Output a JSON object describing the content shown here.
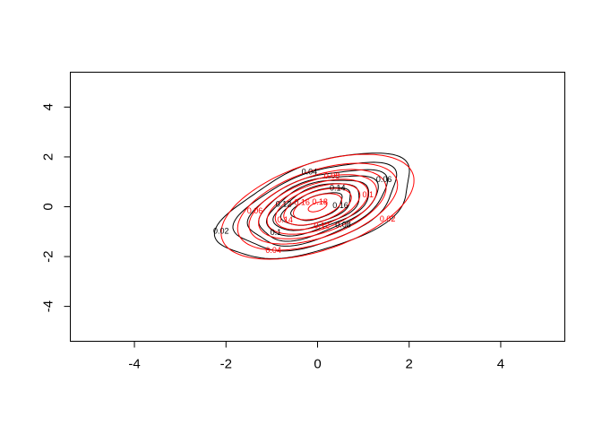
{
  "chart_data": {
    "type": "contour",
    "title": "",
    "xlabel": "",
    "ylabel": "",
    "xlim": [
      -5.4,
      5.4
    ],
    "ylim": [
      -5.4,
      5.4
    ],
    "x_ticks": [
      "-4",
      "-2",
      "0",
      "2",
      "4"
    ],
    "y_ticks": [
      "-4",
      "-2",
      "0",
      "2",
      "4"
    ],
    "x_tick_values": [
      -4,
      -2,
      0,
      2,
      4
    ],
    "y_tick_values": [
      -4,
      -2,
      0,
      2,
      4
    ],
    "grid": false,
    "series": [
      {
        "color": "#000000",
        "mean": [
          0,
          0
        ],
        "sd": [
          1.0,
          1.0
        ],
        "rho": 0.52,
        "levels": [
          0.02,
          0.04,
          0.06,
          0.08,
          0.1,
          0.12,
          0.14,
          0.16
        ],
        "labels": [
          "0.02",
          "0.04",
          "0.06",
          "0.08",
          "0.1",
          "0.12",
          "0.14",
          "0.16"
        ]
      },
      {
        "color": "#ff0000",
        "mean": [
          0,
          0
        ],
        "sd": [
          1.0,
          1.0
        ],
        "rho": 0.5,
        "levels": [
          0.02,
          0.04,
          0.06,
          0.08,
          0.1,
          0.12,
          0.14,
          0.16,
          0.18
        ],
        "labels": [
          "0.02",
          "0.04",
          "0.06",
          "0.08",
          "0.1",
          "0.12",
          "0.14",
          "0.16",
          "0.18"
        ]
      }
    ]
  }
}
